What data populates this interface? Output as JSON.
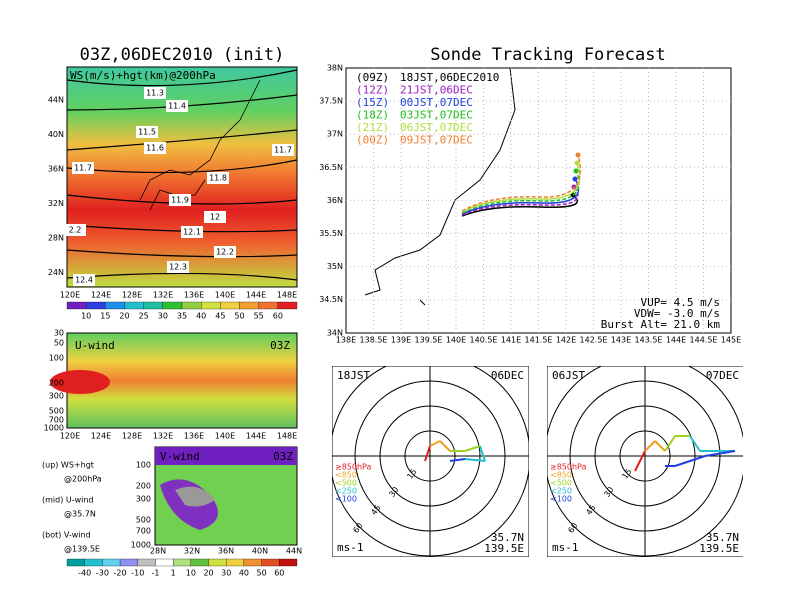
{
  "wind_map": {
    "title": "03Z,06DEC2010 (init)",
    "label": "WS(m/s)+hgt(km)@200hPa",
    "contour_labels": [
      "11.3",
      "11.4",
      "11.5",
      "11.6",
      "11.7",
      "11.7",
      "11.8",
      "11.9",
      "12",
      "12.1",
      "12.2",
      "12.3",
      "12.4",
      "2.2"
    ],
    "yticks": [
      "44N",
      "40N",
      "36N",
      "32N",
      "28N",
      "24N"
    ],
    "xticks": [
      "120E",
      "124E",
      "128E",
      "132E",
      "136E",
      "140E",
      "144E",
      "148E"
    ],
    "colorbar": [
      "10",
      "15",
      "20",
      "25",
      "30",
      "35",
      "40",
      "45",
      "50",
      "55",
      "60"
    ]
  },
  "u_wind": {
    "title": "U-wind",
    "time": "03Z",
    "yticks": [
      "30",
      "50",
      "100",
      "200",
      "300",
      "500",
      "700",
      "1000"
    ],
    "xticks": [
      "120E",
      "124E",
      "128E",
      "132E",
      "136E",
      "140E",
      "144E",
      "148E"
    ]
  },
  "v_wind": {
    "title": "V-wind",
    "time": "03Z",
    "yticks": [
      "100",
      "200",
      "300",
      "500",
      "700",
      "1000"
    ],
    "xticks": [
      "28N",
      "32N",
      "36N",
      "40N",
      "44N"
    ],
    "colorbar": [
      "-40",
      "-30",
      "-20",
      "-10",
      "-1",
      "1",
      "10",
      "20",
      "30",
      "40",
      "50",
      "60"
    ]
  },
  "notes": [
    "(up) WS+hgt",
    "@200hPa",
    "(mid) U-wind",
    "@35.7N",
    "(bot) V-wind",
    "@139.5E"
  ],
  "tracking": {
    "title": "Sonde Tracking Forecast",
    "yticks": [
      "38N",
      "37.5N",
      "37N",
      "36.5N",
      "36N",
      "35.5N",
      "35N",
      "34.5N",
      "34N"
    ],
    "xticks": [
      "138E",
      "138.5E",
      "139E",
      "139.5E",
      "140E",
      "140.5E",
      "141E",
      "141.5E",
      "142E",
      "142.5E",
      "143E",
      "143.5E",
      "144E",
      "144.5E",
      "145E"
    ],
    "legend": [
      {
        "name": "(09Z)",
        "text": "18JST,06DEC2010",
        "color": "#000000"
      },
      {
        "name": "(12Z)",
        "text": "21JST,06DEC",
        "color": "#a020c0"
      },
      {
        "name": "(15Z)",
        "text": "00JST,07DEC",
        "color": "#2040e0"
      },
      {
        "name": "(18Z)",
        "text": "03JST,07DEC",
        "color": "#20c020"
      },
      {
        "name": "(21Z)",
        "text": "06JST,07DEC",
        "color": "#b0e040"
      },
      {
        "name": "(00Z)",
        "text": "09JST,07DEC",
        "color": "#f08030"
      }
    ],
    "info": [
      "VUP= 4.5 m/s",
      "VDW= -3.0 m/s",
      "Burst Alt= 21.0 km"
    ]
  },
  "polar": [
    {
      "time": "18JST",
      "date": "06DEC"
    },
    {
      "time": "06JST",
      "date": "07DEC"
    }
  ],
  "polar_common": {
    "rings": [
      "15",
      "30",
      "45",
      "60"
    ],
    "levels": [
      {
        "label": "≥850hPa",
        "color": "#e02020"
      },
      {
        "label": "<850",
        "color": "#f0a020"
      },
      {
        "label": "<500",
        "color": "#a0d020"
      },
      {
        "label": "<250",
        "color": "#20c0d0"
      },
      {
        "label": "<100",
        "color": "#2040e0"
      }
    ],
    "unit": "ms-1",
    "lat": "35.7N",
    "lon": "139.5E"
  }
}
